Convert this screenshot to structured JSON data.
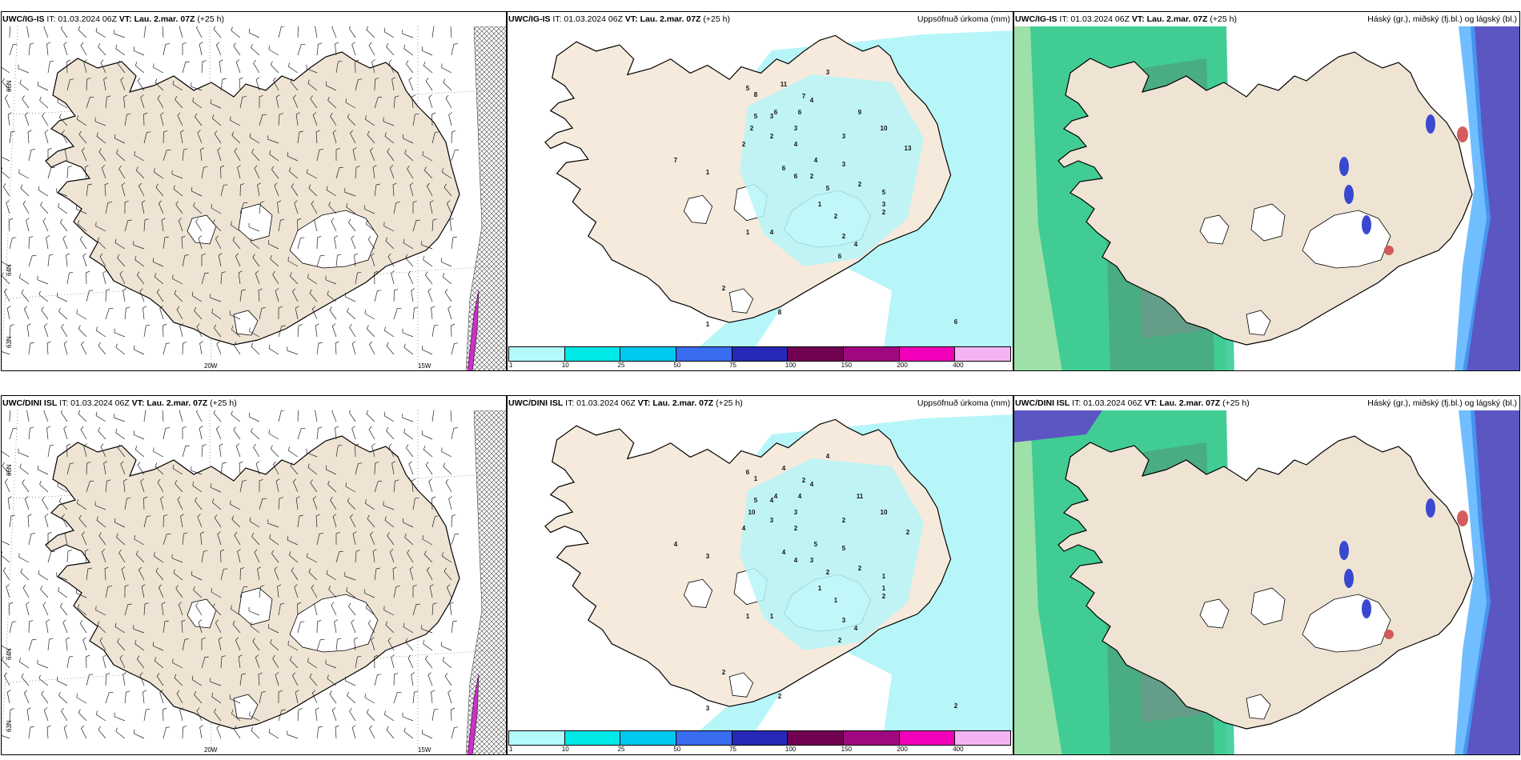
{
  "rows": [
    {
      "wind": {
        "model": "UWC/IG-IS",
        "it": "IT: 01.03.2024 06Z",
        "vt": "VT: Lau. 2.mar. 07Z",
        "lead": "(+25 h)",
        "lat_labels": [
          "66N",
          "64N",
          "63N"
        ],
        "lon_labels": [
          "20W",
          "15W"
        ]
      },
      "precip": {
        "model": "UWC/IG-IS",
        "it": "IT: 01.03.2024 06Z",
        "vt": "VT: Lau. 2.mar. 07Z",
        "lead": "(+25 h)",
        "title": "Uppsöfnuð úrkoma (mm)",
        "values": [
          "5",
          "8",
          "11",
          "5",
          "3",
          "2",
          "7",
          "6",
          "6",
          "3",
          "4",
          "9",
          "10",
          "13",
          "1",
          "3",
          "2",
          "2",
          "4",
          "3",
          "4",
          "6",
          "3",
          "6",
          "2",
          "2",
          "5",
          "5",
          "3",
          "1",
          "2",
          "2",
          "4",
          "6",
          "4",
          "1",
          "2",
          "1",
          "8",
          "6",
          "2",
          "7"
        ]
      },
      "cloud": {
        "model": "UWC/IG-IS",
        "it": "IT: 01.03.2024 06Z",
        "vt": "VT: Lau. 2.mar. 07Z",
        "lead": "(+25 h)",
        "title": "Háský (gr.), miðský (fj.bl.) og lágský (bl.)"
      }
    },
    {
      "wind": {
        "model": "UWC/DINI ISL",
        "it": "IT: 01.03.2024 06Z",
        "vt": "VT: Lau. 2.mar. 07Z",
        "lead": "(+25 h)",
        "lat_labels": [
          "66N",
          "64N",
          "63N"
        ],
        "lon_labels": [
          "20W",
          "15W"
        ]
      },
      "precip": {
        "model": "UWC/DINI ISL",
        "it": "IT: 01.03.2024 06Z",
        "vt": "VT: Lau. 2.mar. 07Z",
        "lead": "(+25 h)",
        "title": "Uppsöfnuð úrkoma (mm)",
        "values": [
          "6",
          "1",
          "4",
          "5",
          "4",
          "10",
          "2",
          "4",
          "4",
          "4",
          "4",
          "11",
          "10",
          "2",
          "3",
          "3",
          "3",
          "4",
          "2",
          "2",
          "5",
          "4",
          "5",
          "4",
          "3",
          "2",
          "2",
          "1",
          "1",
          "1",
          "1",
          "3",
          "4",
          "2",
          "1",
          "1",
          "2",
          "3",
          "2",
          "2",
          "2",
          "4"
        ]
      },
      "cloud": {
        "model": "UWC/DINI ISL",
        "it": "IT: 01.03.2024 06Z",
        "vt": "VT: Lau. 2.mar. 07Z",
        "lead": "(+25 h)",
        "title": "Háský (gr.), miðský (fj.bl.) og lágský (bl.)"
      }
    }
  ],
  "colorbar": {
    "labels": [
      "1",
      "10",
      "25",
      "50",
      "75",
      "100",
      "150",
      "200",
      "400"
    ],
    "colors": [
      "#b3fafa",
      "#00e8e8",
      "#00c8f0",
      "#3a6cf0",
      "#2828b8",
      "#700050",
      "#a00880",
      "#f000b8",
      "#f4b4f4"
    ]
  },
  "colors": {
    "land": "#f0e6d8",
    "land_fill_dini": "#e8dccb",
    "precip_fill": "#b6f6f8",
    "high_cloud": "#20c080",
    "mid_cloud": "#3a48d0",
    "low_cloud": "#5050b0"
  }
}
